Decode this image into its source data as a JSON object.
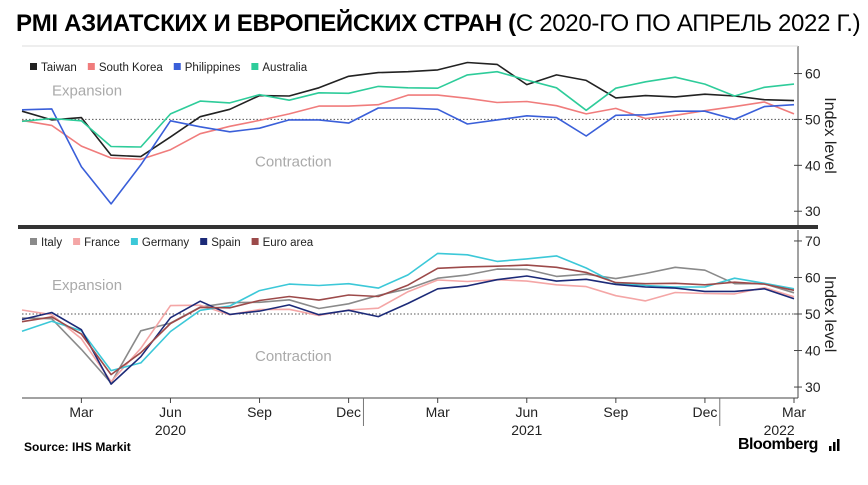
{
  "header": {
    "title_bold": "PMI АЗИАТСКИХ И ЕВРОПЕЙСКИХ СТРАН (",
    "title_thin": "С 2020-ГО ПО АПРЕЛЬ 2022 Г.)"
  },
  "footer": {
    "source": "Source: IHS Markit",
    "brand": "Bloomberg",
    "brand_icon": "bar-chart-icon"
  },
  "colors": {
    "Taiwan": "#222222",
    "South Korea": "#f07c7c",
    "Philippines": "#3a5fd9",
    "Australia": "#2ecc9a",
    "Italy": "#8a8a8a",
    "France": "#f4a6a6",
    "Germany": "#3cc8d8",
    "Spain": "#1c2a78",
    "Euro area": "#9c4a4a"
  },
  "chart_data": [
    {
      "type": "line",
      "title": "",
      "xlabel": "",
      "ylabel": "Index level",
      "ylim": [
        27,
        66
      ],
      "yticks": [
        30,
        40,
        50,
        60
      ],
      "threshold": 50,
      "annotations": {
        "above": "Expansion",
        "below": "Contraction"
      },
      "legend_position": "top-left",
      "x": [
        "2020-01",
        "2020-02",
        "2020-03",
        "2020-04",
        "2020-05",
        "2020-06",
        "2020-07",
        "2020-08",
        "2020-09",
        "2020-10",
        "2020-11",
        "2020-12",
        "2021-01",
        "2021-02",
        "2021-03",
        "2021-04",
        "2021-05",
        "2021-06",
        "2021-07",
        "2021-08",
        "2021-09",
        "2021-10",
        "2021-11",
        "2021-12",
        "2022-01",
        "2022-02",
        "2022-03"
      ],
      "series": [
        {
          "name": "Taiwan",
          "values": [
            51.8,
            49.9,
            50.4,
            42.2,
            41.9,
            46.2,
            50.6,
            52.2,
            55.2,
            55.1,
            56.9,
            59.4,
            60.2,
            60.4,
            60.8,
            62.4,
            62.0,
            57.6,
            59.7,
            58.5,
            54.7,
            55.2,
            54.9,
            55.5,
            55.1,
            54.3,
            54.1
          ]
        },
        {
          "name": "South Korea",
          "values": [
            49.8,
            48.7,
            44.2,
            41.6,
            41.3,
            43.4,
            46.9,
            48.5,
            49.8,
            51.2,
            52.9,
            52.9,
            53.2,
            55.3,
            55.3,
            54.6,
            53.7,
            53.9,
            53.0,
            51.2,
            52.4,
            50.2,
            50.9,
            51.9,
            52.8,
            53.8,
            51.2
          ]
        },
        {
          "name": "Philippines",
          "values": [
            52.1,
            52.3,
            39.7,
            31.6,
            40.1,
            49.7,
            48.4,
            47.3,
            48.1,
            49.9,
            49.9,
            49.2,
            52.5,
            52.5,
            52.2,
            49.0,
            49.9,
            50.8,
            50.4,
            46.4,
            50.9,
            51.0,
            51.8,
            51.8,
            50.0,
            52.8,
            53.2
          ]
        },
        {
          "name": "Australia",
          "values": [
            49.6,
            50.2,
            49.7,
            44.1,
            44.0,
            51.2,
            54.0,
            53.6,
            55.4,
            54.2,
            55.8,
            55.7,
            57.2,
            56.9,
            56.8,
            59.7,
            60.4,
            58.6,
            56.9,
            52.0,
            56.8,
            58.2,
            59.2,
            57.7,
            55.1,
            57.0,
            57.7
          ]
        }
      ]
    },
    {
      "type": "line",
      "title": "",
      "xlabel": "",
      "ylabel": "Index level",
      "ylim": [
        27,
        73
      ],
      "yticks": [
        30,
        40,
        50,
        60,
        70
      ],
      "threshold": 50,
      "annotations": {
        "above": "Expansion",
        "below": "Contraction"
      },
      "legend_position": "top-left",
      "x_tick_labels": [
        "Mar",
        "Jun",
        "Sep",
        "Dec",
        "Mar",
        "Jun",
        "Sep",
        "Dec",
        "Mar"
      ],
      "year_labels": [
        "2020",
        "2021",
        "2022"
      ],
      "x": [
        "2020-01",
        "2020-02",
        "2020-03",
        "2020-04",
        "2020-05",
        "2020-06",
        "2020-07",
        "2020-08",
        "2020-09",
        "2020-10",
        "2020-11",
        "2020-12",
        "2021-01",
        "2021-02",
        "2021-03",
        "2021-04",
        "2021-05",
        "2021-06",
        "2021-07",
        "2021-08",
        "2021-09",
        "2021-10",
        "2021-11",
        "2021-12",
        "2022-01",
        "2022-02",
        "2022-03"
      ],
      "series": [
        {
          "name": "Italy",
          "values": [
            48.9,
            48.7,
            40.3,
            31.1,
            45.4,
            47.5,
            51.9,
            53.1,
            53.2,
            53.9,
            51.5,
            52.8,
            55.1,
            56.9,
            59.8,
            60.7,
            62.3,
            62.2,
            60.3,
            60.9,
            59.7,
            61.1,
            62.8,
            62.0,
            58.3,
            58.3,
            55.8
          ]
        },
        {
          "name": "France",
          "values": [
            51.1,
            49.8,
            43.2,
            31.5,
            40.6,
            52.3,
            52.4,
            49.8,
            51.2,
            51.3,
            49.6,
            51.1,
            51.6,
            56.1,
            59.3,
            58.9,
            59.4,
            59.0,
            58.0,
            57.5,
            55.0,
            53.6,
            55.9,
            55.6,
            55.5,
            57.2,
            54.7
          ]
        },
        {
          "name": "Germany",
          "values": [
            45.3,
            48.0,
            45.4,
            34.5,
            36.6,
            45.2,
            51.0,
            52.2,
            56.4,
            58.2,
            57.8,
            58.3,
            57.1,
            60.7,
            66.6,
            66.2,
            64.4,
            65.1,
            65.9,
            62.6,
            58.4,
            57.8,
            57.4,
            57.4,
            59.8,
            58.4,
            56.9
          ]
        },
        {
          "name": "Spain",
          "values": [
            48.5,
            50.4,
            45.7,
            30.8,
            38.3,
            49.0,
            53.5,
            49.9,
            50.8,
            52.5,
            49.8,
            51.0,
            49.3,
            52.9,
            56.9,
            57.7,
            59.4,
            60.4,
            59.0,
            59.5,
            58.1,
            57.4,
            57.1,
            56.2,
            56.2,
            56.9,
            54.2
          ]
        },
        {
          "name": "Euro area",
          "values": [
            47.9,
            49.2,
            44.5,
            33.4,
            39.4,
            47.4,
            51.8,
            51.7,
            53.7,
            54.8,
            53.8,
            55.2,
            54.8,
            57.9,
            62.5,
            62.9,
            63.1,
            63.4,
            62.8,
            61.4,
            58.6,
            58.3,
            58.4,
            58.0,
            58.7,
            58.2,
            56.5
          ]
        }
      ]
    }
  ]
}
